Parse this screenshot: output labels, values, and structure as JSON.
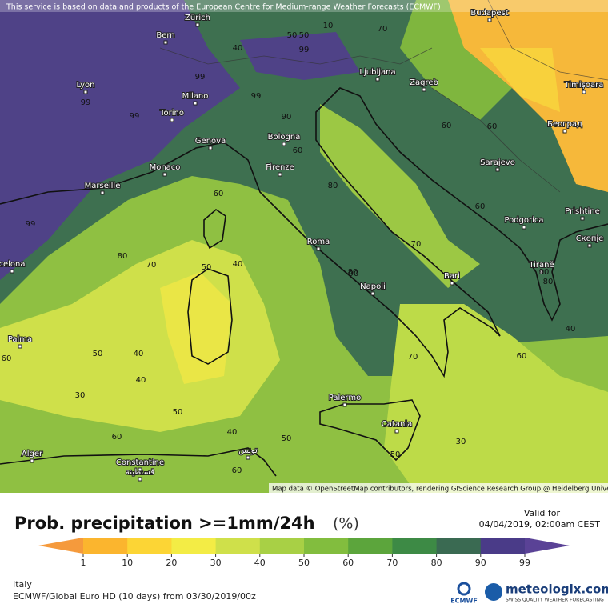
{
  "notice": "This service is based on data and products of the European Centre for Medium-range Weather Forecasts (ECMWF)",
  "attribution": "Map data © OpenStreetMap contributors, rendering GIScience Research Group @ Heidelberg University",
  "cities": [
    "Zürich",
    "Bern",
    "Budapest",
    "Lyon",
    "Milano",
    "Ljubljana",
    "Zagreb",
    "Timișoara",
    "Torino",
    "Београд",
    "Genova",
    "Bologna",
    "Sarajevo",
    "Monaco",
    "Firenze",
    "Marseille",
    "Prishtine",
    "Podgorica",
    "Скопје",
    "Roma",
    "Tiranë",
    "Bari",
    "Napoli",
    "celona",
    "Palma",
    "Palermo",
    "Catania",
    "Alger",
    "Constantine",
    "قسنطينة",
    "تونس"
  ],
  "contour_labels": [
    50,
    50,
    10,
    70,
    40,
    99,
    99,
    99,
    99,
    99,
    90,
    60,
    80,
    60,
    80,
    99,
    60,
    50,
    40,
    80,
    70,
    90,
    60,
    60,
    80,
    70,
    50,
    40,
    60,
    30,
    40,
    50,
    60,
    50,
    40,
    60,
    50,
    70,
    30,
    60,
    90,
    40
  ],
  "legend": {
    "title": "Prob. precipitation >=1mm/24h",
    "unit": "(%)",
    "ticks": [
      1,
      10,
      20,
      30,
      40,
      50,
      60,
      70,
      80,
      90,
      99
    ],
    "colors": [
      "#f59a3c",
      "#fbb52e",
      "#fcd535",
      "#f3ec45",
      "#cfe04a",
      "#a8d045",
      "#82bd3e",
      "#5ca53c",
      "#3d8a45",
      "#3a6a52",
      "#4a3b88",
      "#5a4296"
    ]
  },
  "valid": {
    "label": "Valid for",
    "time": "04/04/2019, 02:00am CEST"
  },
  "footer": {
    "region": "Italy",
    "model": "ECMWF/Global Euro HD (10 days) from 03/30/2019/00z"
  },
  "logos": {
    "ecmwf": "ECMWF",
    "brand": "meteologix.com",
    "tagline": "SWISS QUALITY WEATHER FORECASTING"
  }
}
